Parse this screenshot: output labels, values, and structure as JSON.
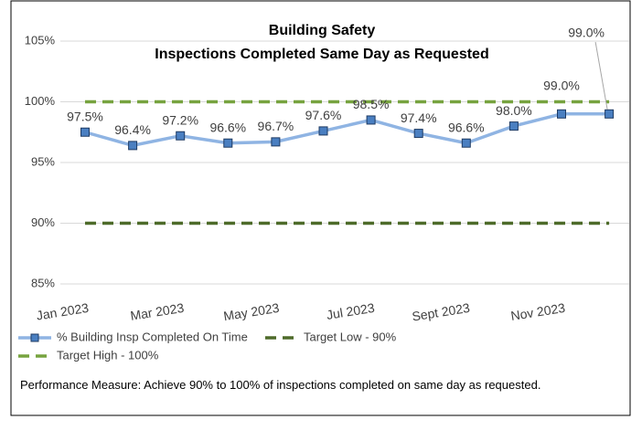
{
  "chart_data": {
    "type": "line",
    "title": "Building Safety",
    "subtitle": "Inspections Completed Same Day as Requested",
    "categories": [
      "Jan 2023",
      null,
      "Mar 2023",
      null,
      "May 2023",
      null,
      "Jul 2023",
      null,
      "Sept 2023",
      null,
      "Nov 2023",
      null
    ],
    "series": [
      {
        "name": "% Building Insp Completed On Time",
        "color": "#8fb4e3",
        "marker_color": "#4a7fc1",
        "markers": true,
        "dash": false,
        "values": [
          97.5,
          96.4,
          97.2,
          96.6,
          96.7,
          97.6,
          98.5,
          97.4,
          96.6,
          98.0,
          99.0,
          99.0
        ],
        "value_labels": [
          "97.5%",
          "96.4%",
          "97.2%",
          "96.6%",
          "96.7%",
          "97.6%",
          "98.5%",
          "97.4%",
          "96.6%",
          "98.0%",
          "99.0%",
          "99.0%"
        ]
      },
      {
        "name": "Target Low - 90%",
        "color": "#4e6b2a",
        "markers": false,
        "dash": true,
        "values": [
          90,
          90,
          90,
          90,
          90,
          90,
          90,
          90,
          90,
          90,
          90,
          90
        ]
      },
      {
        "name": "Target High - 100%",
        "color": "#77a33f",
        "markers": false,
        "dash": true,
        "values": [
          100,
          100,
          100,
          100,
          100,
          100,
          100,
          100,
          100,
          100,
          100,
          100
        ]
      }
    ],
    "ylim": [
      85,
      105
    ],
    "yticks": [
      {
        "value": 85,
        "label": "85%"
      },
      {
        "value": 90,
        "label": "90%"
      },
      {
        "value": 95,
        "label": "95%"
      },
      {
        "value": 100,
        "label": "100%"
      },
      {
        "value": 105,
        "label": "105%"
      }
    ],
    "grid": true,
    "note": "Performance Measure: Achieve 90% to 100% of inspections completed on same day as requested."
  }
}
